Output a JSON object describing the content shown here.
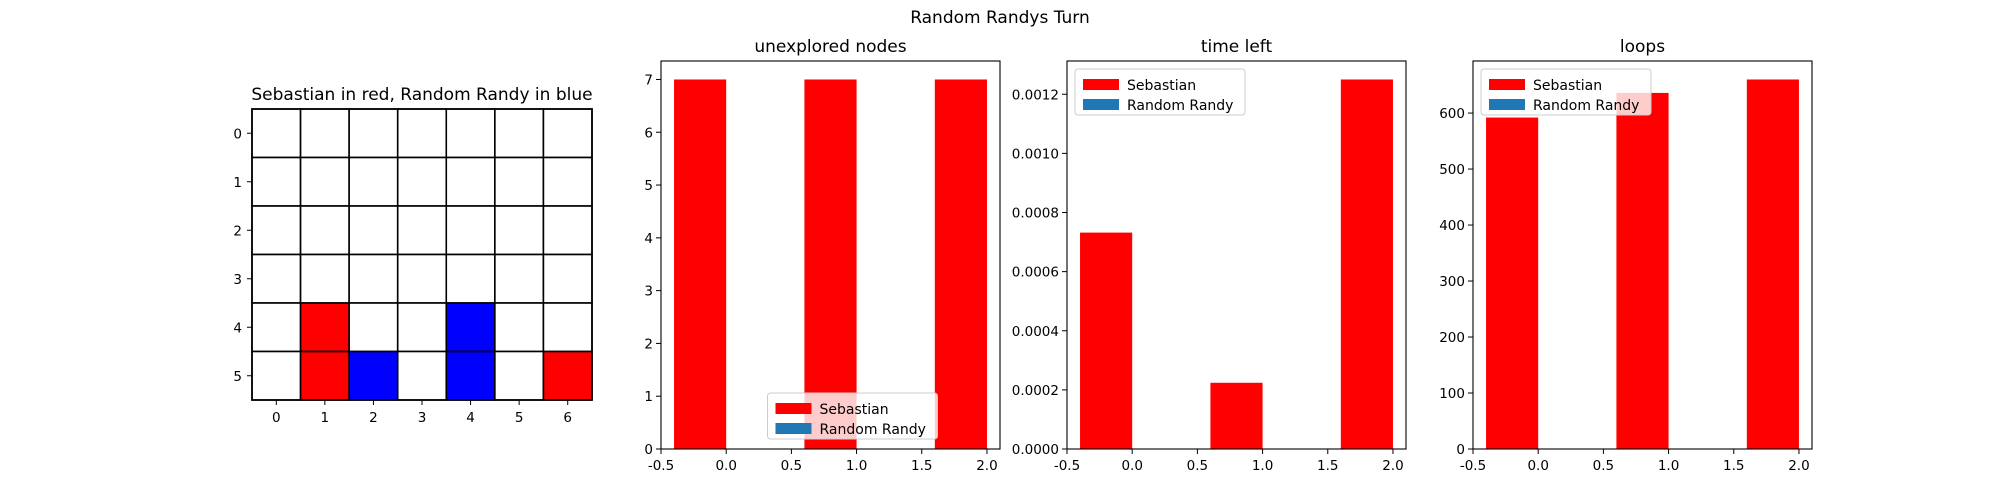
{
  "figure": {
    "suptitle": "Random Randys Turn"
  },
  "chart_data": [
    {
      "type": "heatmap",
      "title": "Sebastian in red, Random Randy in blue",
      "rows": 6,
      "cols": 7,
      "row_ticks": [
        "0",
        "1",
        "2",
        "3",
        "4",
        "5"
      ],
      "col_ticks": [
        "0",
        "1",
        "2",
        "3",
        "4",
        "5",
        "6"
      ],
      "cells": [
        [
          "white",
          "white",
          "white",
          "white",
          "white",
          "white",
          "white"
        ],
        [
          "white",
          "white",
          "white",
          "white",
          "white",
          "white",
          "white"
        ],
        [
          "white",
          "white",
          "white",
          "white",
          "white",
          "white",
          "white"
        ],
        [
          "white",
          "white",
          "white",
          "white",
          "white",
          "white",
          "white"
        ],
        [
          "white",
          "red",
          "white",
          "white",
          "blue",
          "white",
          "white"
        ],
        [
          "white",
          "red",
          "blue",
          "white",
          "blue",
          "white",
          "red"
        ]
      ],
      "colors": {
        "white": "#ffffff",
        "red": "#ff0000",
        "blue": "#0000ff"
      },
      "grid": true
    },
    {
      "type": "bar",
      "title": "unexplored nodes",
      "xlim": [
        -0.5,
        2.1
      ],
      "ylim": [
        0,
        7.35
      ],
      "xticks": [
        "-0.5",
        "0.0",
        "0.5",
        "1.0",
        "1.5",
        "2.0"
      ],
      "yticks": [
        "0",
        "1",
        "2",
        "3",
        "4",
        "5",
        "6",
        "7"
      ],
      "bar_width": 0.4,
      "legend": "lower-center",
      "series": [
        {
          "name": "Sebastian",
          "color": "#ff0000",
          "offset": -0.2,
          "x": [
            0,
            1,
            2
          ],
          "values": [
            7,
            7,
            7
          ]
        },
        {
          "name": "Random Randy",
          "color": "#1f77b4",
          "offset": 0.2,
          "x": [
            0,
            1,
            2
          ],
          "values": [
            0,
            0,
            0
          ]
        }
      ]
    },
    {
      "type": "bar",
      "title": "time left",
      "xlim": [
        -0.5,
        2.1
      ],
      "ylim": [
        0,
        0.0013125
      ],
      "xticks": [
        "-0.5",
        "0.0",
        "0.5",
        "1.0",
        "1.5",
        "2.0"
      ],
      "yticks": [
        "0.0000",
        "0.0002",
        "0.0004",
        "0.0006",
        "0.0008",
        "0.0010",
        "0.0012"
      ],
      "bar_width": 0.4,
      "legend": "upper-left",
      "series": [
        {
          "name": "Sebastian",
          "color": "#ff0000",
          "offset": -0.2,
          "x": [
            0,
            1,
            2
          ],
          "values": [
            0.000732,
            0.000224,
            0.00125
          ]
        },
        {
          "name": "Random Randy",
          "color": "#1f77b4",
          "offset": 0.2,
          "x": [
            0,
            1,
            2
          ],
          "values": [
            0,
            0,
            0
          ]
        }
      ]
    },
    {
      "type": "bar",
      "title": "loops",
      "xlim": [
        -0.5,
        2.1
      ],
      "ylim": [
        0,
        693
      ],
      "xticks": [
        "-0.5",
        "0.0",
        "0.5",
        "1.0",
        "1.5",
        "2.0"
      ],
      "yticks": [
        "0",
        "100",
        "200",
        "300",
        "400",
        "500",
        "600"
      ],
      "bar_width": 0.4,
      "legend": "upper-left",
      "series": [
        {
          "name": "Sebastian",
          "color": "#ff0000",
          "offset": -0.2,
          "x": [
            0,
            1,
            2
          ],
          "values": [
            592,
            636,
            660
          ]
        },
        {
          "name": "Random Randy",
          "color": "#1f77b4",
          "offset": 0.2,
          "x": [
            0,
            1,
            2
          ],
          "values": [
            0,
            0,
            0
          ]
        }
      ]
    }
  ]
}
